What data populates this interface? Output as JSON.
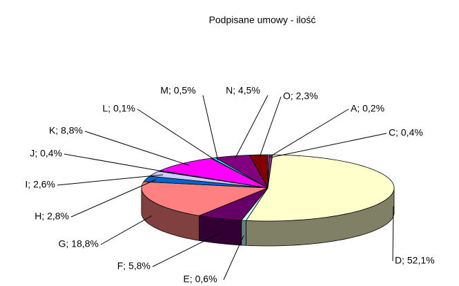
{
  "chart_data": {
    "type": "pie3d",
    "title": "Podpisane umowy - ilość",
    "values": [
      0.2,
      0.4,
      52.1,
      0.6,
      5.8,
      18.8,
      2.8,
      2.6,
      0.4,
      8.8,
      0.1,
      0.5,
      4.5,
      2.3
    ],
    "value_labels": [
      "A; 0,2%",
      "C; 0,4%",
      "D; 52,1%",
      "E; 0,6%",
      "F; 5,8%",
      "G; 18,8%",
      "H; 2,8%",
      "I; 2,6%",
      "J; 0,4%",
      "K; 8,8%",
      "L; 0,1%",
      "M; 0,5%",
      "N; 4,5%",
      "O; 2,3%"
    ],
    "colors": [
      "#9999FF",
      "#993366",
      "#FFFFCC",
      "#CCFFFF",
      "#660066",
      "#FF8080",
      "#0066CC",
      "#CCCCFF",
      "#000080",
      "#FF00FF",
      "#FFFF00",
      "#00FFFF",
      "#800080",
      "#800000"
    ]
  }
}
